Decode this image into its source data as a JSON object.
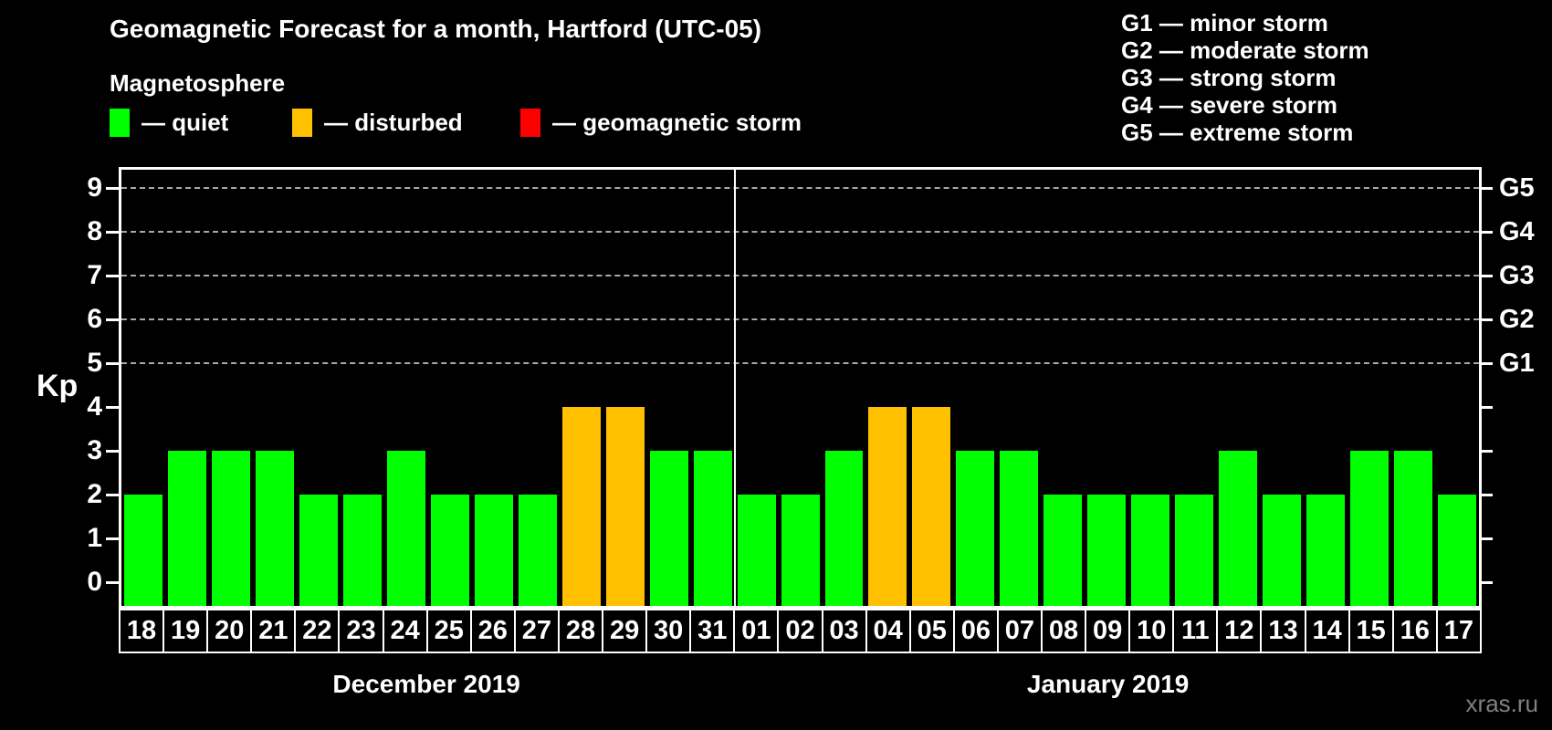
{
  "header": {
    "title": "Geomagnetic Forecast for a month, Hartford (UTC-05)",
    "subtitle": "Magnetosphere"
  },
  "legend": {
    "items": [
      {
        "name": "quiet",
        "label": "— quiet",
        "color": "#00ff00"
      },
      {
        "name": "disturbed",
        "label": "— disturbed",
        "color": "#ffc000"
      },
      {
        "name": "storm",
        "label": "— geomagnetic storm",
        "color": "#ff0000"
      }
    ]
  },
  "g_legend": {
    "items": [
      "G1 — minor storm",
      "G2 — moderate storm",
      "G3 — strong storm",
      "G4 — severe storm",
      "G5 — extreme storm"
    ]
  },
  "watermark": "xras.ru",
  "chart_data": {
    "type": "bar",
    "title": "Geomagnetic Forecast for a month, Hartford (UTC-05)",
    "ylabel": "Kp",
    "ylim": [
      0,
      9
    ],
    "y_ticks": [
      0,
      1,
      2,
      3,
      4,
      5,
      6,
      7,
      8,
      9
    ],
    "grid": "dashed horizontal lines at Kp 5 through 9",
    "legend_position": "top",
    "right_axis_labels": [
      {
        "kp": 5,
        "label": "G1"
      },
      {
        "kp": 6,
        "label": "G2"
      },
      {
        "kp": 7,
        "label": "G3"
      },
      {
        "kp": 8,
        "label": "G4"
      },
      {
        "kp": 9,
        "label": "G5"
      }
    ],
    "colors": {
      "quiet": "#00ff00",
      "disturbed": "#ffc000",
      "storm": "#ff0000"
    },
    "months": [
      {
        "label": "December 2019",
        "bars": [
          {
            "day": "18",
            "kp": 2,
            "state": "quiet"
          },
          {
            "day": "19",
            "kp": 3,
            "state": "quiet"
          },
          {
            "day": "20",
            "kp": 3,
            "state": "quiet"
          },
          {
            "day": "21",
            "kp": 3,
            "state": "quiet"
          },
          {
            "day": "22",
            "kp": 2,
            "state": "quiet"
          },
          {
            "day": "23",
            "kp": 2,
            "state": "quiet"
          },
          {
            "day": "24",
            "kp": 3,
            "state": "quiet"
          },
          {
            "day": "25",
            "kp": 2,
            "state": "quiet"
          },
          {
            "day": "26",
            "kp": 2,
            "state": "quiet"
          },
          {
            "day": "27",
            "kp": 2,
            "state": "quiet"
          },
          {
            "day": "28",
            "kp": 4,
            "state": "disturbed"
          },
          {
            "day": "29",
            "kp": 4,
            "state": "disturbed"
          },
          {
            "day": "30",
            "kp": 3,
            "state": "quiet"
          },
          {
            "day": "31",
            "kp": 3,
            "state": "quiet"
          }
        ]
      },
      {
        "label": "January 2019",
        "bars": [
          {
            "day": "01",
            "kp": 2,
            "state": "quiet"
          },
          {
            "day": "02",
            "kp": 2,
            "state": "quiet"
          },
          {
            "day": "03",
            "kp": 3,
            "state": "quiet"
          },
          {
            "day": "04",
            "kp": 4,
            "state": "disturbed"
          },
          {
            "day": "05",
            "kp": 4,
            "state": "disturbed"
          },
          {
            "day": "06",
            "kp": 3,
            "state": "quiet"
          },
          {
            "day": "07",
            "kp": 3,
            "state": "quiet"
          },
          {
            "day": "08",
            "kp": 2,
            "state": "quiet"
          },
          {
            "day": "09",
            "kp": 2,
            "state": "quiet"
          },
          {
            "day": "10",
            "kp": 2,
            "state": "quiet"
          },
          {
            "day": "11",
            "kp": 2,
            "state": "quiet"
          },
          {
            "day": "12",
            "kp": 3,
            "state": "quiet"
          },
          {
            "day": "13",
            "kp": 2,
            "state": "quiet"
          },
          {
            "day": "14",
            "kp": 2,
            "state": "quiet"
          },
          {
            "day": "15",
            "kp": 3,
            "state": "quiet"
          },
          {
            "day": "16",
            "kp": 3,
            "state": "quiet"
          },
          {
            "day": "17",
            "kp": 2,
            "state": "quiet"
          }
        ]
      }
    ]
  }
}
